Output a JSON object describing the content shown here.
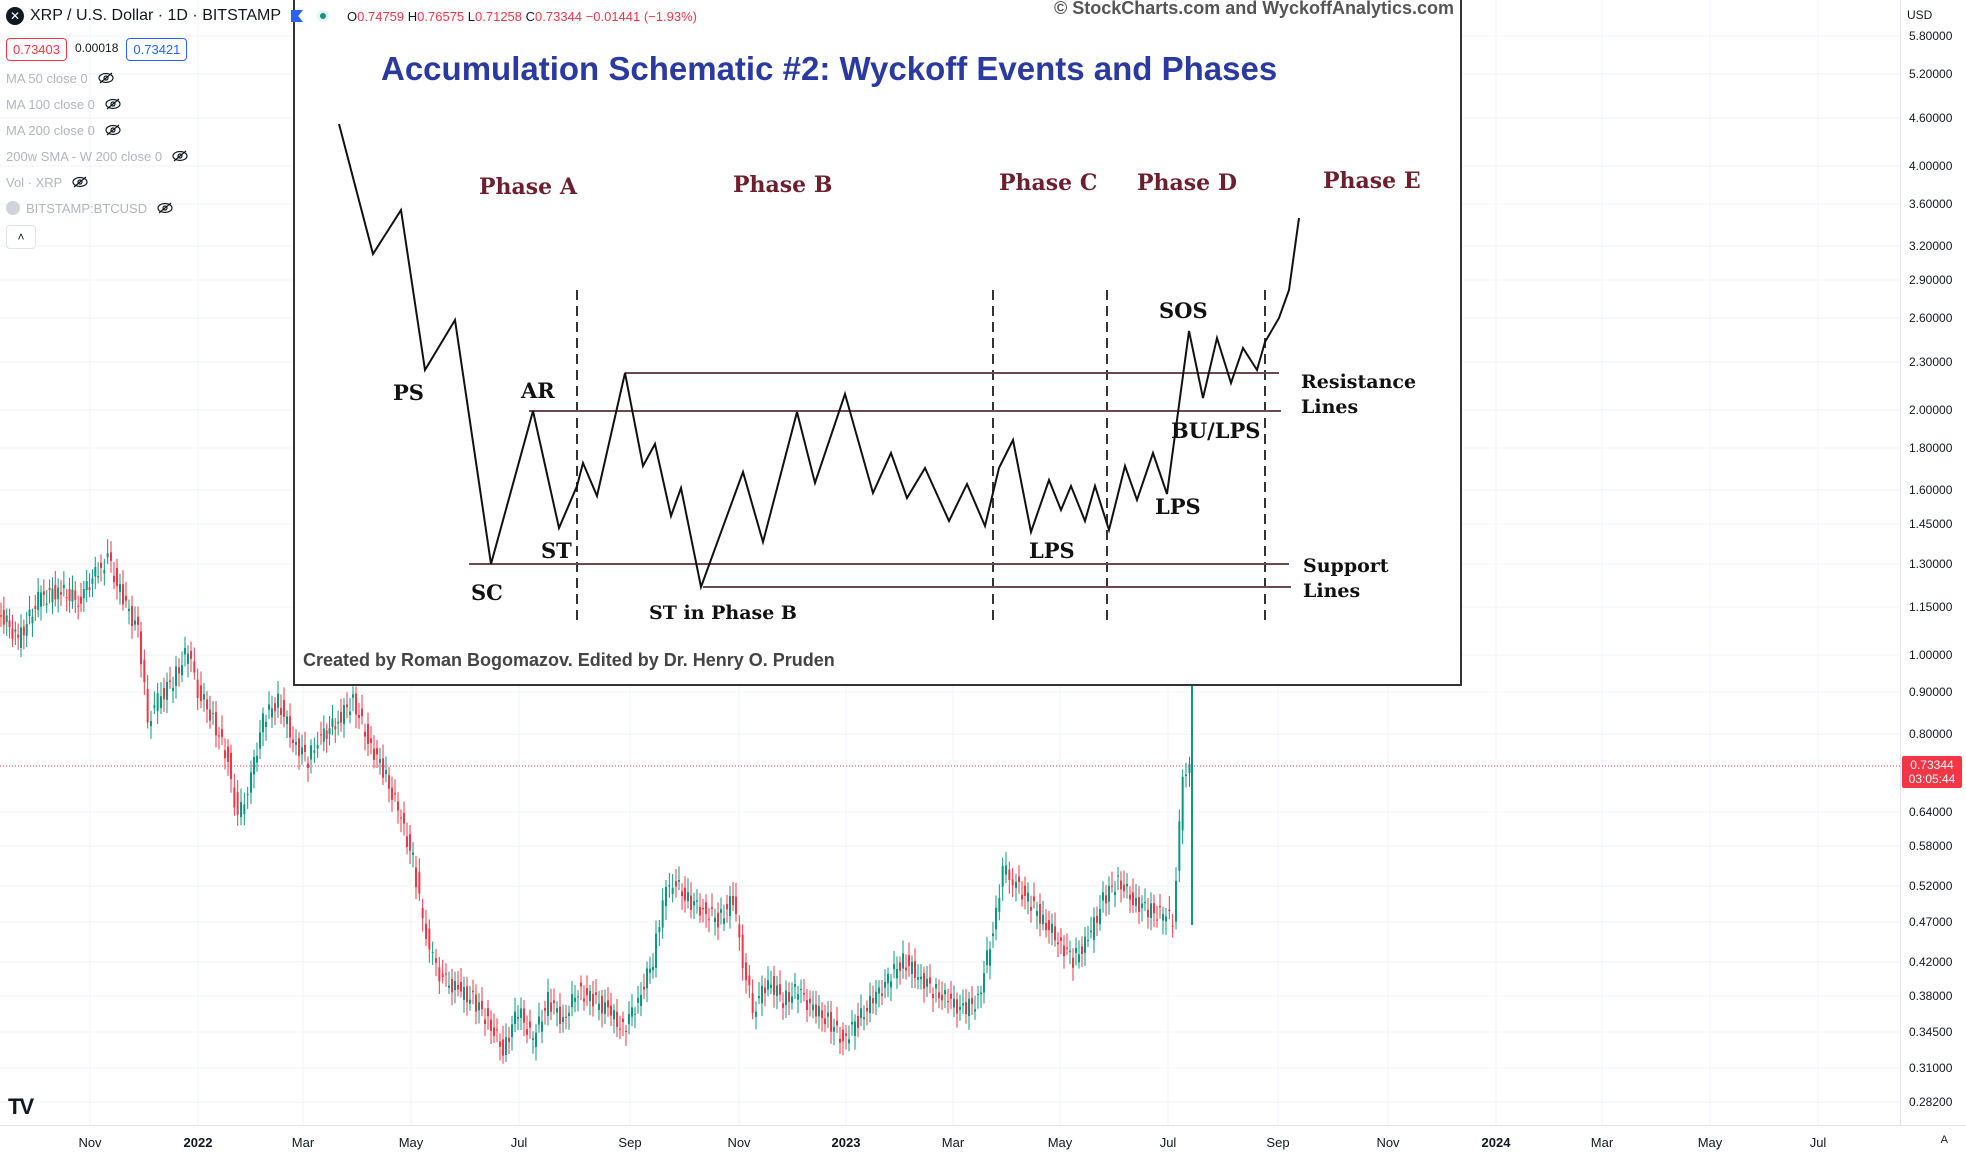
{
  "header": {
    "symbol_icon": "x-icon",
    "symbol_title": "XRP / U.S. Dollar · 1D · BITSTAMP",
    "ohlc": {
      "o_label": "O",
      "o": "0.74759",
      "h_label": "H",
      "h": "0.76575",
      "l_label": "L",
      "l": "0.71258",
      "c_label": "C",
      "c": "0.73344",
      "change": "−0.01441 (−1.93%)"
    },
    "sell_price": "0.73403",
    "spread": "0.00018",
    "buy_price": "0.73421"
  },
  "indicators": [
    {
      "label": "MA 50 close 0"
    },
    {
      "label": "MA 100 close 0"
    },
    {
      "label": "MA 200 close 0"
    },
    {
      "label": "200w SMA - W 200 close 0"
    },
    {
      "label": "Vol · XRP"
    },
    {
      "label": "BITSTAMP:BTCUSD"
    }
  ],
  "collapse_glyph": "˄",
  "price_axis": {
    "currency": "USD",
    "labels": [
      "5.80000",
      "5.20000",
      "4.60000",
      "4.00000",
      "3.60000",
      "3.20000",
      "2.90000",
      "2.60000",
      "2.30000",
      "2.00000",
      "1.80000",
      "1.60000",
      "1.45000",
      "1.30000",
      "1.15000",
      "1.00000",
      "0.90000",
      "0.80000",
      "0.64000",
      "0.58000",
      "0.52000",
      "0.47000",
      "0.42000",
      "0.38000",
      "0.34500",
      "0.31000",
      "0.28200"
    ],
    "last_price": "0.73344",
    "countdown": "03:05:44"
  },
  "time_axis": {
    "labels": [
      {
        "text": "Nov",
        "strong": false
      },
      {
        "text": "2022",
        "strong": true
      },
      {
        "text": "Mar",
        "strong": false
      },
      {
        "text": "May",
        "strong": false
      },
      {
        "text": "Jul",
        "strong": false
      },
      {
        "text": "Sep",
        "strong": false
      },
      {
        "text": "Nov",
        "strong": false
      },
      {
        "text": "2023",
        "strong": true
      },
      {
        "text": "Mar",
        "strong": false
      },
      {
        "text": "May",
        "strong": false
      },
      {
        "text": "Jul",
        "strong": false
      },
      {
        "text": "Sep",
        "strong": false
      },
      {
        "text": "Nov",
        "strong": false
      },
      {
        "text": "2024",
        "strong": true
      },
      {
        "text": "Mar",
        "strong": false
      },
      {
        "text": "May",
        "strong": false
      },
      {
        "text": "Jul",
        "strong": false
      }
    ],
    "auto_label": "A"
  },
  "schematic": {
    "copyright": "© StockCharts.com and WyckoffAnalytics.com",
    "title": "Accumulation Schematic #2: Wyckoff Events and Phases",
    "phases": [
      "Phase A",
      "Phase B",
      "Phase C",
      "Phase D",
      "Phase E"
    ],
    "events": {
      "ps": "PS",
      "ar": "AR",
      "st": "ST",
      "sc": "SC",
      "st_phase_b": "ST in Phase B",
      "lps_c": "LPS",
      "lps_d": "LPS",
      "sos": "SOS",
      "bu_lps": "BU/LPS"
    },
    "resistance_label": [
      "Resistance",
      "Lines"
    ],
    "support_label": [
      "Support",
      "Lines"
    ],
    "credit": "Created by Roman Bogomazov. Edited by Dr. Henry O. Pruden"
  },
  "logo": "TV",
  "colors": {
    "up": "#089981",
    "down": "#f23645",
    "accent": "#2962ff",
    "title": "#2a3aa0",
    "phase": "#6d1f2e"
  }
}
